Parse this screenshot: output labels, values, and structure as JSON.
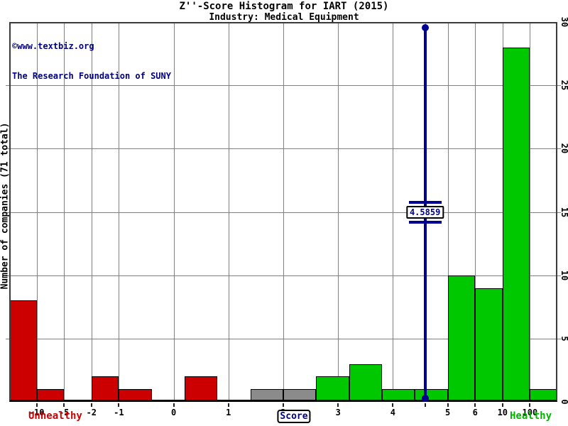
{
  "chart_data": {
    "type": "bar",
    "title": "Z''-Score Histogram for IART (2015)",
    "subtitle": "Industry: Medical Equipment",
    "watermark_line1": "©www.textbiz.org",
    "watermark_line2": "The Research Foundation of SUNY",
    "ylabel": "Number of companies (71 total)",
    "xlabel": "Score",
    "total_companies": 71,
    "x_axis": {
      "breakpoints": [
        -15,
        -10,
        -5,
        -2,
        -1,
        0,
        1,
        2,
        3,
        4,
        5,
        6,
        10,
        100,
        102
      ],
      "segment_weights": [
        1,
        1,
        1,
        1,
        2,
        2,
        2,
        2,
        2,
        2,
        1,
        1,
        1,
        1
      ],
      "tick_values": [
        -10,
        -5,
        -2,
        -1,
        0,
        1,
        2,
        3,
        4,
        5,
        6,
        10,
        100
      ],
      "tick_labels": [
        "-10",
        "-5",
        "-2",
        "-1",
        "0",
        "1",
        "2",
        "3",
        "4",
        "5",
        "6",
        "10",
        "100"
      ]
    },
    "y_axis": {
      "min": 0,
      "max": 30,
      "tick_step": 5,
      "tick_labels": [
        "0",
        "5",
        "10",
        "15",
        "20",
        "25",
        "30"
      ],
      "side": "right",
      "grid": true
    },
    "bins": [
      {
        "label": "< -10",
        "from": -15,
        "to": -10,
        "count": 8,
        "zone": "distress"
      },
      {
        "label": "-10 to -5",
        "from": -10,
        "to": -5,
        "count": 1,
        "zone": "distress"
      },
      {
        "label": "-5 to -2",
        "from": -5,
        "to": -2,
        "count": 0,
        "zone": "distress"
      },
      {
        "label": "-2 to -1",
        "from": -2,
        "to": -1,
        "count": 2,
        "zone": "distress"
      },
      {
        "label": "-1 to -0.4",
        "from": -1,
        "to": -0.4,
        "count": 1,
        "zone": "distress"
      },
      {
        "label": "-0.4 to 0.2",
        "from": -0.4,
        "to": 0.2,
        "count": 0,
        "zone": "distress"
      },
      {
        "label": "0.2 to 0.8",
        "from": 0.2,
        "to": 0.8,
        "count": 2,
        "zone": "distress"
      },
      {
        "label": "0.8 to 1.4",
        "from": 0.8,
        "to": 1.4,
        "count": 0,
        "zone": "distress"
      },
      {
        "label": "1.4 to 2",
        "from": 1.4,
        "to": 2,
        "count": 1,
        "zone": "grey"
      },
      {
        "label": "2 to 2.6",
        "from": 2,
        "to": 2.6,
        "count": 1,
        "zone": "grey"
      },
      {
        "label": "2.6 to 3.2",
        "from": 2.6,
        "to": 3.2,
        "count": 2,
        "zone": "safe"
      },
      {
        "label": "3.2 to 3.8",
        "from": 3.2,
        "to": 3.8,
        "count": 3,
        "zone": "safe"
      },
      {
        "label": "3.8 to 4.4",
        "from": 3.8,
        "to": 4.4,
        "count": 1,
        "zone": "safe"
      },
      {
        "label": "4.4 to 5",
        "from": 4.4,
        "to": 5,
        "count": 1,
        "zone": "safe"
      },
      {
        "label": "5 to 6",
        "from": 5,
        "to": 6,
        "count": 10,
        "zone": "safe"
      },
      {
        "label": "6 to 10",
        "from": 6,
        "to": 10,
        "count": 9,
        "zone": "safe"
      },
      {
        "label": "10 to 100",
        "from": 10,
        "to": 100,
        "count": 28,
        "zone": "safe"
      },
      {
        "label": "> 100",
        "from": 100,
        "to": 102,
        "count": 1,
        "zone": "safe"
      }
    ],
    "marker": {
      "score": 4.5859,
      "label": "4.5859"
    },
    "zone_labels": {
      "left": {
        "text": "Unhealthy",
        "color": "#cc0000"
      },
      "right": {
        "text": "Healthy",
        "color": "#00b400"
      }
    },
    "colors": {
      "distress": "#cc0000",
      "grey": "#8b8b8b",
      "safe": "#00c800",
      "marker": "#000090",
      "navy_text": "#000080",
      "grid": "#808080",
      "frame": "#3c3c3c"
    }
  }
}
